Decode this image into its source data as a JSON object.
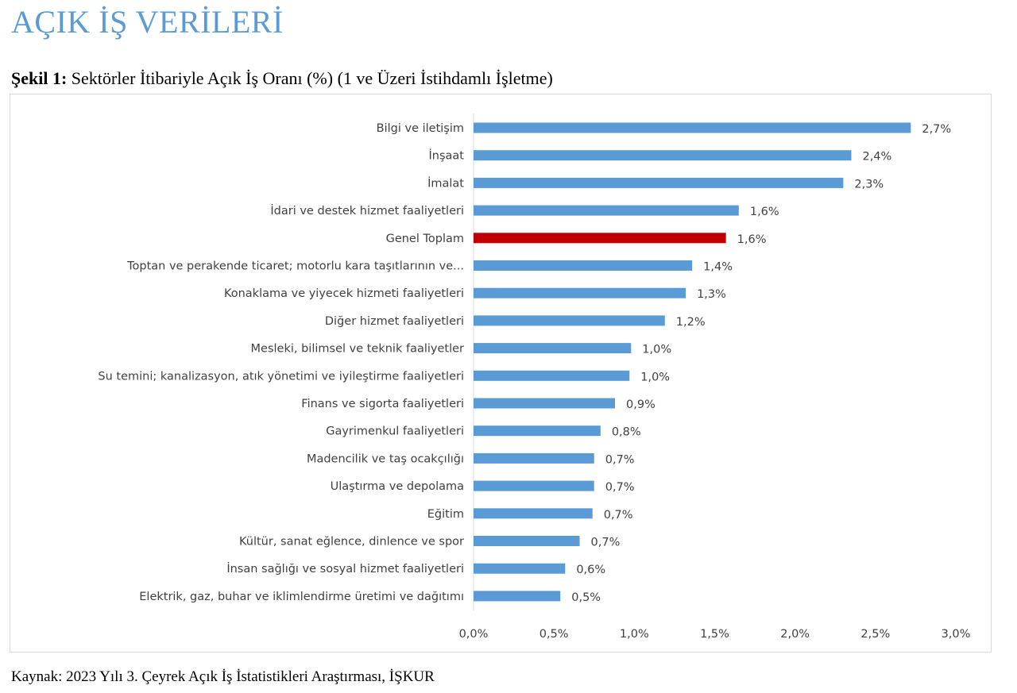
{
  "page": {
    "heading": "AÇIK İŞ VERİLERİ",
    "caption_label": "Şekil 1:",
    "caption_text": " Sektörler İtibariyle Açık İş Oranı (%) (1 ve Üzeri İstihdamlı İşletme)",
    "source": "Kaynak: 2023 Yılı 3. Çeyrek Açık İş İstatistikleri Araştırması, İŞKUR"
  },
  "colors": {
    "bar": "#5b9bd5",
    "highlight_bar": "#c00000",
    "heading": "#5b9bd5"
  },
  "chart_data": {
    "type": "bar",
    "orientation": "horizontal",
    "title": "",
    "xlabel": "",
    "ylabel": "",
    "xlim": [
      0,
      3.0
    ],
    "x_ticks": [
      "0,0%",
      "0,5%",
      "1,0%",
      "1,5%",
      "2,0%",
      "2,5%",
      "3,0%"
    ],
    "grid": false,
    "legend": "none",
    "categories": [
      "Bilgi ve iletişim",
      "İnşaat",
      "İmalat",
      "İdari ve destek hizmet faaliyetleri",
      "Genel Toplam",
      "Toptan ve perakende ticaret; motorlu kara taşıtlarının ve...",
      "Konaklama ve yiyecek hizmeti faaliyetleri",
      "Diğer hizmet faaliyetleri",
      "Mesleki, bilimsel ve teknik faaliyetler",
      "Su temini; kanalizasyon, atık yönetimi ve iyileştirme faaliyetleri",
      "Finans ve sigorta faaliyetleri",
      "Gayrimenkul faaliyetleri",
      "Madencilik ve taş ocakçılığı",
      "Ulaştırma ve depolama",
      "Eğitim",
      "Kültür, sanat eğlence, dinlence ve spor",
      "İnsan sağlığı ve sosyal hizmet faaliyetleri",
      "Elektrik, gaz, buhar ve iklimlendirme üretimi ve dağıtımı"
    ],
    "values": [
      2.72,
      2.35,
      2.3,
      1.65,
      1.57,
      1.36,
      1.32,
      1.19,
      0.98,
      0.97,
      0.88,
      0.79,
      0.75,
      0.75,
      0.74,
      0.66,
      0.57,
      0.54
    ],
    "value_labels": [
      "2,7%",
      "2,4%",
      "2,3%",
      "1,6%",
      "1,6%",
      "1,4%",
      "1,3%",
      "1,2%",
      "1,0%",
      "1,0%",
      "0,9%",
      "0,8%",
      "0,7%",
      "0,7%",
      "0,7%",
      "0,7%",
      "0,6%",
      "0,5%"
    ],
    "highlight_category": "Genel Toplam"
  }
}
